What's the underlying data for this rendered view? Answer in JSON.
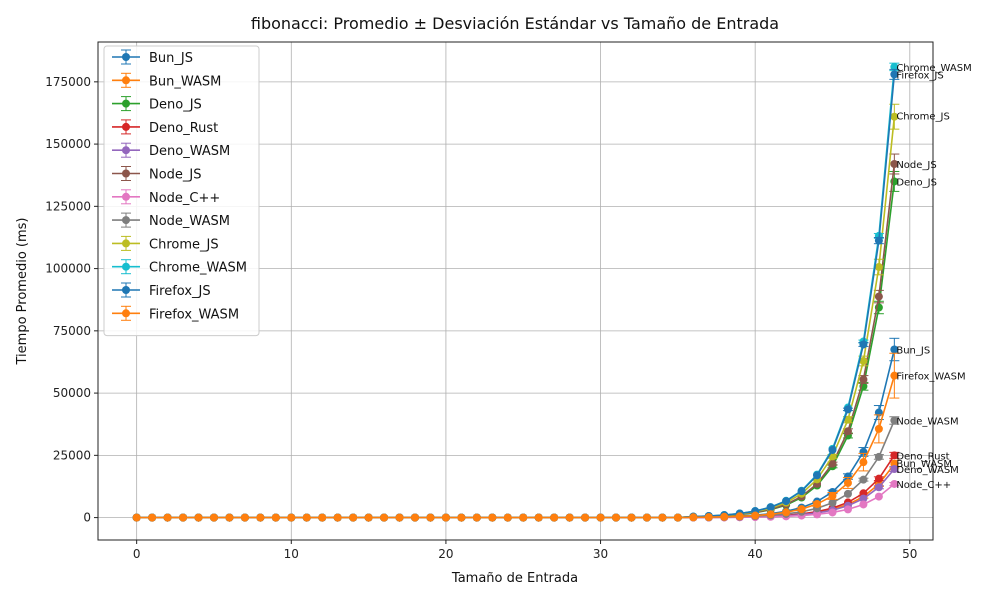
{
  "chart_data": {
    "type": "line",
    "title": "fibonacci: Promedio ± Desviación Estándar vs Tamaño de Entrada",
    "xlabel": "Tamaño de Entrada",
    "ylabel": "Tiempo Promedio (ms)",
    "xlim": [
      -2.5,
      51.5
    ],
    "ylim": [
      -9000,
      191000
    ],
    "xticks": [
      0,
      10,
      20,
      30,
      40,
      50
    ],
    "yticks": [
      0,
      25000,
      50000,
      75000,
      100000,
      125000,
      150000,
      175000
    ],
    "grid": true,
    "legend_position": "top-left",
    "base": 1.6,
    "start_n": 36,
    "series": [
      {
        "name": "Bun_JS",
        "color": "#1f77b4",
        "final": 67500,
        "err": 4500,
        "end_label": "Bun_JS",
        "end_label_y": 67500
      },
      {
        "name": "Bun_WASM",
        "color": "#ff7f0e",
        "final": 21500,
        "err": 1500,
        "end_label": "Bun_WASM",
        "end_label_y": 22000
      },
      {
        "name": "Deno_JS",
        "color": "#2ca02c",
        "final": 135000,
        "err": 4000,
        "end_label": "Deno_JS",
        "end_label_y": 135000
      },
      {
        "name": "Deno_Rust",
        "color": "#d62728",
        "final": 25000,
        "err": 1200,
        "end_label": "Deno_Rust",
        "end_label_y": 25000
      },
      {
        "name": "Deno_WASM",
        "color": "#9467bd",
        "final": 19500,
        "err": 1000,
        "end_label": "Deno_WASM",
        "end_label_y": 19500
      },
      {
        "name": "Node_JS",
        "color": "#8c564b",
        "final": 142000,
        "err": 4000,
        "end_label": "Node_JS",
        "end_label_y": 142000
      },
      {
        "name": "Node_C++",
        "color": "#e377c2",
        "final": 13500,
        "err": 600,
        "end_label": "Node_C++",
        "end_label_y": 13500
      },
      {
        "name": "Node_WASM",
        "color": "#7f7f7f",
        "final": 39000,
        "err": 1500,
        "end_label": "Node_WASM",
        "end_label_y": 39000
      },
      {
        "name": "Chrome_JS",
        "color": "#bcbd22",
        "final": 161000,
        "err": 5000,
        "end_label": "Chrome_JS",
        "end_label_y": 161500
      },
      {
        "name": "Chrome_WASM",
        "color": "#17becf",
        "final": 181000,
        "err": 1500,
        "end_label": "Chrome_WASM",
        "end_label_y": 181000
      },
      {
        "name": "Firefox_JS",
        "color": "#1f77b4",
        "final": 178000,
        "err": 2000,
        "end_label": "Firefox_JS",
        "end_label_y": 178000
      },
      {
        "name": "Firefox_WASM",
        "color": "#ff7f0e",
        "final": 57000,
        "err": 9000,
        "end_label": "Firefox_WASM",
        "end_label_y": 57000
      }
    ]
  }
}
